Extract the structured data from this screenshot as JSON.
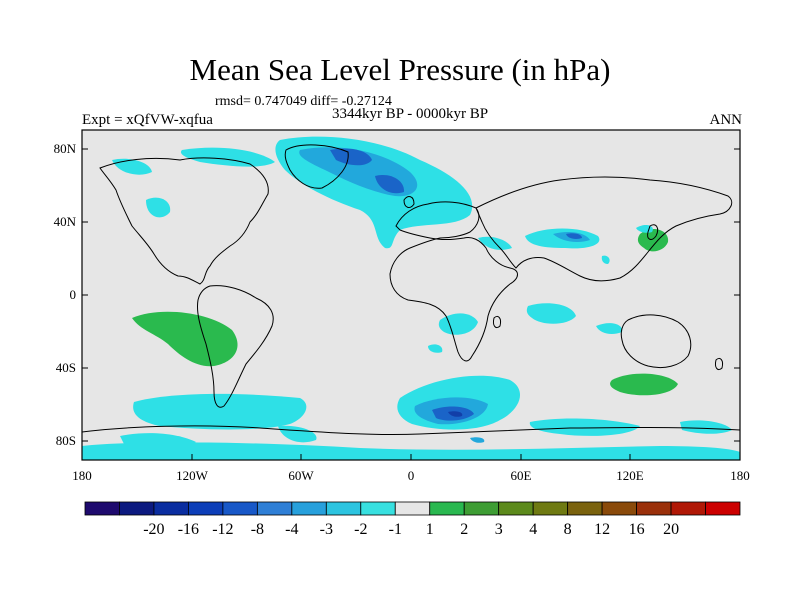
{
  "title": "Mean Sea Level Pressure (in hPa)",
  "stats": "rmsd= 0.747049 diff= -0.27124",
  "period": "3344kyr BP - 0000kyr BP",
  "experiment": "Expt = xQfVW-xqfua",
  "season": "ANN",
  "lat_ticks": [
    "80N",
    "40N",
    "0",
    "40S",
    "80S"
  ],
  "lon_ticks": [
    "180",
    "120W",
    "60W",
    "0",
    "60E",
    "120E",
    "180"
  ],
  "colorbar": {
    "colors": [
      "#1e0a6e",
      "#0c1a80",
      "#0a2da0",
      "#0c3eb8",
      "#1858c8",
      "#2f7fd6",
      "#27a0dc",
      "#2cc4e0",
      "#38e0e0",
      "#e6e6e6",
      "#2ab850",
      "#3e9d34",
      "#5c8a1c",
      "#6f7a12",
      "#7a620e",
      "#8a4a0a",
      "#9a300a",
      "#b01806",
      "#cc0000"
    ],
    "labels": [
      "-20",
      "-16",
      "-12",
      "-8",
      "-4",
      "-3",
      "-2",
      "-1",
      "1",
      "2",
      "3",
      "4",
      "8",
      "12",
      "16",
      "20"
    ]
  },
  "colors": {
    "land_bg": "#e6e6e6",
    "neg_light": "#2ee0e6",
    "neg_mid": "#22a8dc",
    "neg_dark": "#1a64c8",
    "neg_darker": "#123fa8",
    "pos_light": "#2aba4e"
  }
}
